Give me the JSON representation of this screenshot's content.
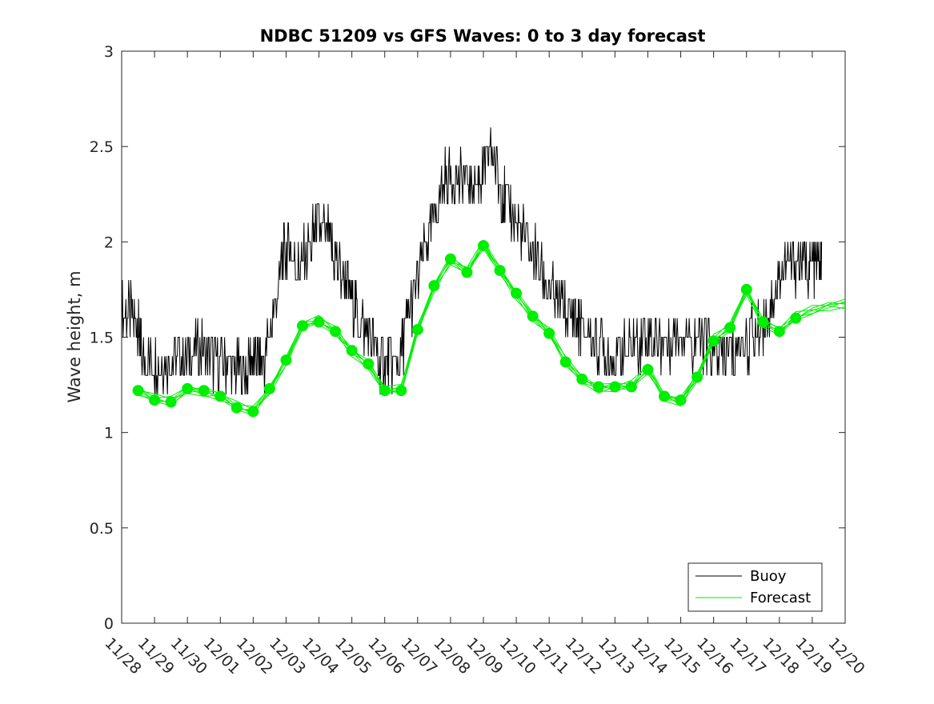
{
  "chart_data": {
    "type": "line",
    "title": "NDBC 51209 vs GFS Waves: 0 to 3 day forecast",
    "xlabel": "",
    "ylabel": "Wave height, m",
    "ylim": [
      0,
      3
    ],
    "yticks": [
      0,
      0.5,
      1,
      1.5,
      2,
      2.5,
      3
    ],
    "ytick_labels": [
      "0",
      "0.5",
      "1",
      "1.5",
      "2",
      "2.5",
      "3"
    ],
    "xlim": [
      0,
      22
    ],
    "xtick_labels": [
      "11/28",
      "11/29",
      "11/30",
      "12/01",
      "12/02",
      "12/03",
      "12/04",
      "12/05",
      "12/06",
      "12/07",
      "12/08",
      "12/09",
      "12/10",
      "12/11",
      "12/12",
      "12/13",
      "12/14",
      "12/15",
      "12/16",
      "12/17",
      "12/18",
      "12/19",
      "12/20"
    ],
    "grid": false,
    "legend": {
      "position": "bottom-right",
      "entries": [
        "Buoy",
        "Forecast"
      ]
    },
    "colors": {
      "buoy": "#000000",
      "forecast": "#00ee00"
    },
    "series": [
      {
        "name": "Buoy",
        "x": [
          0.0,
          0.3,
          0.5,
          0.6,
          0.9,
          1.2,
          1.5,
          1.8,
          2.1,
          2.4,
          2.7,
          3.0,
          3.3,
          3.6,
          3.9,
          4.1,
          4.3,
          4.6,
          4.9,
          5.1,
          5.3,
          5.5,
          5.8,
          6.0,
          6.3,
          6.5,
          6.8,
          7.0,
          7.2,
          7.5,
          7.8,
          8.0,
          8.2,
          8.5,
          8.7,
          9.0,
          9.3,
          9.6,
          9.9,
          10.2,
          10.5,
          10.8,
          11.0,
          11.2,
          11.5,
          11.7,
          12.0,
          12.3,
          12.6,
          12.9,
          13.2,
          13.5,
          13.8,
          14.0,
          14.3,
          14.6,
          14.9,
          15.2,
          15.5,
          15.8,
          16.1,
          16.4,
          16.7,
          17.0,
          17.3,
          17.6,
          17.9,
          18.2,
          18.5,
          18.8,
          19.1,
          19.4,
          19.7,
          20.0,
          20.3,
          20.6,
          20.9,
          21.1,
          21.3
        ],
        "values": [
          1.65,
          1.6,
          1.55,
          1.4,
          1.35,
          1.4,
          1.35,
          1.4,
          1.4,
          1.45,
          1.4,
          1.35,
          1.35,
          1.3,
          1.35,
          1.35,
          1.35,
          1.6,
          1.9,
          2.0,
          1.85,
          1.9,
          2.0,
          2.1,
          2.0,
          1.9,
          1.8,
          1.7,
          1.6,
          1.5,
          1.4,
          1.35,
          1.35,
          1.4,
          1.6,
          1.8,
          2.0,
          2.2,
          2.35,
          2.35,
          2.3,
          2.3,
          2.35,
          2.5,
          2.3,
          2.2,
          2.1,
          2.0,
          1.9,
          1.8,
          1.7,
          1.65,
          1.6,
          1.55,
          1.5,
          1.45,
          1.4,
          1.4,
          1.45,
          1.5,
          1.5,
          1.45,
          1.5,
          1.55,
          1.5,
          1.45,
          1.45,
          1.4,
          1.4,
          1.45,
          1.5,
          1.55,
          1.65,
          1.8,
          1.9,
          1.85,
          1.85,
          1.85,
          1.85
        ]
      },
      {
        "name": "Forecast",
        "x": [
          0.5,
          1.0,
          1.5,
          2.0,
          2.5,
          3.0,
          3.5,
          4.0,
          4.5,
          5.0,
          5.5,
          6.0,
          6.5,
          7.0,
          7.5,
          8.0,
          8.5,
          9.0,
          9.5,
          10.0,
          10.5,
          11.0,
          11.5,
          12.0,
          12.5,
          13.0,
          13.5,
          14.0,
          14.5,
          15.0,
          15.5,
          16.0,
          16.5,
          17.0,
          17.5,
          18.0,
          18.5,
          19.0,
          19.5,
          20.0,
          20.5,
          21.0,
          21.5,
          22.0
        ],
        "values": [
          1.22,
          1.17,
          1.16,
          1.23,
          1.22,
          1.19,
          1.13,
          1.11,
          1.23,
          1.38,
          1.56,
          1.58,
          1.53,
          1.43,
          1.36,
          1.22,
          1.22,
          1.54,
          1.77,
          1.91,
          1.84,
          1.98,
          1.85,
          1.73,
          1.61,
          1.52,
          1.37,
          1.28,
          1.24,
          1.24,
          1.24,
          1.33,
          1.19,
          1.17,
          1.29,
          1.48,
          1.55,
          1.75,
          1.58,
          1.53,
          1.6,
          1.64,
          1.67,
          1.68
        ]
      }
    ],
    "forecast_markers": {
      "x": [
        0.5,
        1.0,
        1.5,
        2.0,
        2.5,
        3.0,
        3.5,
        4.0,
        4.5,
        5.0,
        5.5,
        6.0,
        6.5,
        7.0,
        7.5,
        8.0,
        8.5,
        9.0,
        9.5,
        10.0,
        10.5,
        11.0,
        11.5,
        12.0,
        12.5,
        13.0,
        13.5,
        14.0,
        14.5,
        15.0,
        15.5,
        16.0,
        16.5,
        17.0,
        17.5,
        18.0,
        18.5,
        19.0,
        19.5,
        20.0,
        20.5
      ],
      "values": [
        1.22,
        1.17,
        1.16,
        1.23,
        1.22,
        1.19,
        1.13,
        1.11,
        1.23,
        1.38,
        1.56,
        1.58,
        1.53,
        1.43,
        1.36,
        1.22,
        1.22,
        1.54,
        1.77,
        1.91,
        1.84,
        1.98,
        1.85,
        1.73,
        1.61,
        1.52,
        1.37,
        1.28,
        1.24,
        1.24,
        1.24,
        1.33,
        1.19,
        1.17,
        1.29,
        1.48,
        1.55,
        1.75,
        1.58,
        1.53,
        1.6
      ]
    }
  }
}
